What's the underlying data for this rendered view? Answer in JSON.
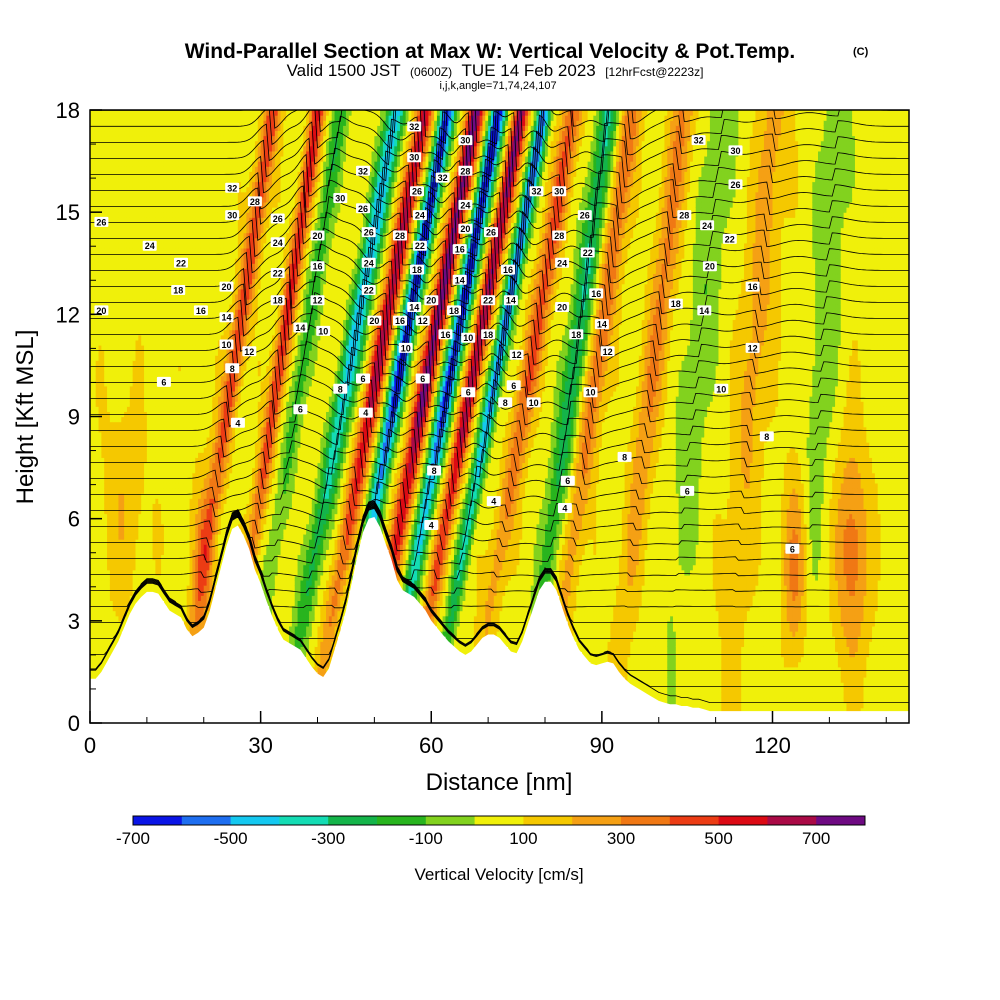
{
  "chart_data": {
    "type": "heatmap",
    "title": "Wind-Parallel Section at Max W: Vertical Velocity & Pot.Temp.",
    "title_mark": "(C)",
    "subtitle_prefix": "Valid 1500 JST",
    "subtitle_zulu": "(0600Z)",
    "subtitle_date": "TUE 14 Feb 2023",
    "subtitle_forecast": "[12hrFcst@2223z]",
    "grid_params": "i,j,k,angle=71,74,24,107",
    "xlabel": "Distance [nm]",
    "ylabel": "Height [Kft MSL]",
    "xlim": [
      0,
      144
    ],
    "ylim": [
      0,
      18
    ],
    "xticks": [
      0,
      30,
      60,
      90,
      120
    ],
    "yticks": [
      0,
      3,
      6,
      9,
      12,
      15,
      18
    ],
    "colorbar": {
      "title": "Vertical Velocity [cm/s]",
      "bounds": [
        -700,
        800
      ],
      "step": 100,
      "tick_values": [
        -700,
        -500,
        -300,
        -100,
        100,
        300,
        500,
        700
      ],
      "tick_labels": [
        "-700",
        "-500",
        "-300",
        "-100",
        "100",
        "300",
        "500",
        "700"
      ],
      "colors": [
        "#0a14e6",
        "#1e6ef0",
        "#14c8f0",
        "#14dcb4",
        "#14b44a",
        "#28b41e",
        "#82d21e",
        "#f0f00a",
        "#f5c800",
        "#f5a014",
        "#f07814",
        "#ec3c14",
        "#dc0a14",
        "#aa0a46",
        "#6e0a82"
      ]
    },
    "terrain": [
      [
        0,
        1.3
      ],
      [
        1,
        1.3
      ],
      [
        2,
        1.5
      ],
      [
        3,
        1.8
      ],
      [
        4,
        2.1
      ],
      [
        5,
        2.4
      ],
      [
        6,
        2.8
      ],
      [
        7,
        3.2
      ],
      [
        8,
        3.5
      ],
      [
        9,
        3.7
      ],
      [
        10,
        3.85
      ],
      [
        11,
        3.85
      ],
      [
        12,
        3.8
      ],
      [
        13,
        3.55
      ],
      [
        14,
        3.3
      ],
      [
        15,
        3.2
      ],
      [
        16,
        3.1
      ],
      [
        17,
        2.75
      ],
      [
        18,
        2.55
      ],
      [
        19,
        2.65
      ],
      [
        20,
        2.8
      ],
      [
        21,
        3.25
      ],
      [
        22,
        3.9
      ],
      [
        23,
        4.55
      ],
      [
        24,
        5.2
      ],
      [
        25,
        5.7
      ],
      [
        26,
        5.8
      ],
      [
        27,
        5.5
      ],
      [
        28,
        5.1
      ],
      [
        29,
        4.5
      ],
      [
        30,
        4.1
      ],
      [
        31,
        3.6
      ],
      [
        32,
        3.15
      ],
      [
        33,
        2.75
      ],
      [
        34,
        2.45
      ],
      [
        35,
        2.35
      ],
      [
        36,
        2.25
      ],
      [
        37,
        2.15
      ],
      [
        38,
        1.9
      ],
      [
        39,
        1.65
      ],
      [
        40,
        1.45
      ],
      [
        41,
        1.35
      ],
      [
        42,
        1.6
      ],
      [
        43,
        2.15
      ],
      [
        44,
        2.7
      ],
      [
        45,
        3.3
      ],
      [
        46,
        4.1
      ],
      [
        47,
        4.9
      ],
      [
        48,
        5.6
      ],
      [
        49,
        6.0
      ],
      [
        50,
        6.05
      ],
      [
        51,
        5.75
      ],
      [
        52,
        5.25
      ],
      [
        53,
        4.8
      ],
      [
        54,
        4.2
      ],
      [
        55,
        3.9
      ],
      [
        56,
        3.8
      ],
      [
        57,
        3.7
      ],
      [
        58,
        3.5
      ],
      [
        59,
        3.3
      ],
      [
        60,
        3.0
      ],
      [
        61,
        2.8
      ],
      [
        62,
        2.6
      ],
      [
        63,
        2.4
      ],
      [
        64,
        2.25
      ],
      [
        65,
        2.1
      ],
      [
        66,
        2.0
      ],
      [
        67,
        2.1
      ],
      [
        68,
        2.3
      ],
      [
        69,
        2.5
      ],
      [
        70,
        2.6
      ],
      [
        71,
        2.6
      ],
      [
        72,
        2.5
      ],
      [
        73,
        2.3
      ],
      [
        74,
        2.1
      ],
      [
        75,
        2.05
      ],
      [
        76,
        2.4
      ],
      [
        77,
        2.9
      ],
      [
        78,
        3.4
      ],
      [
        79,
        3.9
      ],
      [
        80,
        4.15
      ],
      [
        81,
        4.15
      ],
      [
        82,
        3.9
      ],
      [
        83,
        3.4
      ],
      [
        84,
        2.9
      ],
      [
        85,
        2.5
      ],
      [
        86,
        2.15
      ],
      [
        87,
        1.95
      ],
      [
        88,
        1.75
      ],
      [
        89,
        1.7
      ],
      [
        90,
        1.75
      ],
      [
        91,
        1.8
      ],
      [
        92,
        1.75
      ],
      [
        93,
        1.5
      ],
      [
        94,
        1.3
      ],
      [
        95,
        1.15
      ],
      [
        96,
        1.05
      ],
      [
        97,
        0.95
      ],
      [
        98,
        0.85
      ],
      [
        99,
        0.75
      ],
      [
        100,
        0.65
      ],
      [
        101,
        0.6
      ],
      [
        102,
        0.55
      ],
      [
        103,
        0.55
      ],
      [
        104,
        0.5
      ],
      [
        105,
        0.5
      ],
      [
        106,
        0.45
      ],
      [
        107,
        0.45
      ],
      [
        108,
        0.4
      ],
      [
        109,
        0.35
      ],
      [
        110,
        0.35
      ],
      [
        111,
        0.35
      ],
      [
        112,
        0.35
      ],
      [
        113,
        0.35
      ],
      [
        114,
        0.35
      ],
      [
        115,
        0.35
      ],
      [
        116,
        0.35
      ],
      [
        117,
        0.35
      ],
      [
        118,
        0.35
      ],
      [
        119,
        0.35
      ],
      [
        120,
        0.35
      ],
      [
        121,
        0.35
      ],
      [
        122,
        0.35
      ],
      [
        123,
        0.35
      ],
      [
        124,
        0.35
      ],
      [
        125,
        0.35
      ],
      [
        126,
        0.35
      ],
      [
        127,
        0.35
      ],
      [
        128,
        0.35
      ],
      [
        129,
        0.35
      ],
      [
        130,
        0.35
      ],
      [
        131,
        0.35
      ],
      [
        132,
        0.35
      ],
      [
        133,
        0.35
      ],
      [
        134,
        0.35
      ],
      [
        135,
        0.35
      ],
      [
        136,
        0.35
      ],
      [
        137,
        0.35
      ],
      [
        138,
        0.35
      ],
      [
        139,
        0.35
      ],
      [
        140,
        0.35
      ],
      [
        141,
        0.35
      ],
      [
        142,
        0.35
      ],
      [
        143,
        0.35
      ],
      [
        144,
        0.35
      ]
    ],
    "wave_bands": [
      {
        "x0": 24,
        "tilt": 0.9,
        "width": 1.5,
        "w": 420
      },
      {
        "x0": 32,
        "tilt": 0.9,
        "width": 1.3,
        "w": 480
      },
      {
        "x0": 36,
        "tilt": 0.9,
        "width": 1.5,
        "w": -240
      },
      {
        "x0": 44,
        "tilt": 1.1,
        "width": 1.7,
        "w": -520
      },
      {
        "x0": 49,
        "tilt": 1.1,
        "width": 1.5,
        "w": 580
      },
      {
        "x0": 53,
        "tilt": 1.1,
        "width": 1.4,
        "w": -720
      },
      {
        "x0": 58,
        "tilt": 1.1,
        "width": 1.5,
        "w": 700
      },
      {
        "x0": 62,
        "tilt": 1.1,
        "width": 1.4,
        "w": -720
      },
      {
        "x0": 66,
        "tilt": 1.1,
        "width": 1.3,
        "w": 650
      },
      {
        "x0": 70,
        "tilt": 1.1,
        "width": 1.2,
        "w": -620
      },
      {
        "x0": 76,
        "tilt": 1.0,
        "width": 1.8,
        "w": 360
      },
      {
        "x0": 84,
        "tilt": 0.8,
        "width": 1.8,
        "w": -380
      },
      {
        "x0": 88,
        "tilt": 0.8,
        "width": 1.8,
        "w": 330
      },
      {
        "x0": 98,
        "tilt": 0.7,
        "width": 2.2,
        "w": 250
      },
      {
        "x0": 106,
        "tilt": 0.6,
        "width": 2.4,
        "w": -160
      },
      {
        "x0": 116,
        "tilt": 0.5,
        "width": 2.6,
        "w": 190
      },
      {
        "x0": 128,
        "tilt": 0.4,
        "width": 2.6,
        "w": -130
      }
    ],
    "lower_cells": [
      {
        "x": 124,
        "z": 4.5,
        "rx": 2.2,
        "rz": 2.8,
        "w": 280
      },
      {
        "x": 134,
        "z": 5.0,
        "rx": 2.8,
        "rz": 3.2,
        "w": 310
      },
      {
        "x": 6,
        "z": 6.5,
        "rx": 4,
        "rz": 3,
        "w": 120
      },
      {
        "x": 20,
        "z": 5.0,
        "rx": 2,
        "rz": 2.5,
        "w": 180
      }
    ],
    "contour_labels": [
      {
        "x": 2.0,
        "z": 14.7,
        "text": "26"
      },
      {
        "x": 10.5,
        "z": 14.0,
        "text": "24"
      },
      {
        "x": 16.0,
        "z": 13.5,
        "text": "22"
      },
      {
        "x": 15.5,
        "z": 12.7,
        "text": "18"
      },
      {
        "x": 19.5,
        "z": 12.1,
        "text": "16"
      },
      {
        "x": 24.0,
        "z": 12.8,
        "text": "20"
      },
      {
        "x": 24.0,
        "z": 11.9,
        "text": "14"
      },
      {
        "x": 24.0,
        "z": 11.1,
        "text": "10"
      },
      {
        "x": 25.0,
        "z": 10.4,
        "text": "8"
      },
      {
        "x": 28.0,
        "z": 10.9,
        "text": "12"
      },
      {
        "x": 25.0,
        "z": 15.7,
        "text": "32"
      },
      {
        "x": 25.0,
        "z": 14.9,
        "text": "30"
      },
      {
        "x": 29.0,
        "z": 15.3,
        "text": "28"
      },
      {
        "x": 33.0,
        "z": 14.8,
        "text": "26"
      },
      {
        "x": 33.0,
        "z": 14.1,
        "text": "24"
      },
      {
        "x": 33.0,
        "z": 13.2,
        "text": "22"
      },
      {
        "x": 33.0,
        "z": 12.4,
        "text": "18"
      },
      {
        "x": 37.0,
        "z": 11.6,
        "text": "14"
      },
      {
        "x": 40.0,
        "z": 14.3,
        "text": "20"
      },
      {
        "x": 40.0,
        "z": 13.4,
        "text": "16"
      },
      {
        "x": 40.0,
        "z": 12.4,
        "text": "12"
      },
      {
        "x": 41.0,
        "z": 11.5,
        "text": "10"
      },
      {
        "x": 26.0,
        "z": 8.8,
        "text": "4"
      },
      {
        "x": 37.0,
        "z": 9.2,
        "text": "6"
      },
      {
        "x": 44.0,
        "z": 9.8,
        "text": "8"
      },
      {
        "x": 44.0,
        "z": 15.4,
        "text": "30"
      },
      {
        "x": 48.0,
        "z": 16.2,
        "text": "32"
      },
      {
        "x": 48.0,
        "z": 15.1,
        "text": "26"
      },
      {
        "x": 49.0,
        "z": 14.4,
        "text": "26"
      },
      {
        "x": 49.0,
        "z": 13.5,
        "text": "24"
      },
      {
        "x": 49.0,
        "z": 12.7,
        "text": "22"
      },
      {
        "x": 50.0,
        "z": 11.8,
        "text": "20"
      },
      {
        "x": 48.0,
        "z": 10.1,
        "text": "6"
      },
      {
        "x": 48.5,
        "z": 9.1,
        "text": "4"
      },
      {
        "x": 54.5,
        "z": 14.3,
        "text": "28"
      },
      {
        "x": 54.5,
        "z": 11.8,
        "text": "16"
      },
      {
        "x": 55.5,
        "z": 11.0,
        "text": "10"
      },
      {
        "x": 57.0,
        "z": 12.2,
        "text": "14"
      },
      {
        "x": 57.0,
        "z": 17.5,
        "text": "32"
      },
      {
        "x": 57.0,
        "z": 16.6,
        "text": "30"
      },
      {
        "x": 57.5,
        "z": 15.6,
        "text": "26"
      },
      {
        "x": 58.0,
        "z": 14.9,
        "text": "24"
      },
      {
        "x": 58.0,
        "z": 14.0,
        "text": "22"
      },
      {
        "x": 57.5,
        "z": 13.3,
        "text": "18"
      },
      {
        "x": 58.5,
        "z": 11.8,
        "text": "12"
      },
      {
        "x": 58.5,
        "z": 10.1,
        "text": "6"
      },
      {
        "x": 60.0,
        "z": 12.4,
        "text": "20"
      },
      {
        "x": 60.5,
        "z": 7.4,
        "text": "8"
      },
      {
        "x": 60.0,
        "z": 5.8,
        "text": "4"
      },
      {
        "x": 62.0,
        "z": 16.0,
        "text": "32"
      },
      {
        "x": 62.5,
        "z": 11.4,
        "text": "16"
      },
      {
        "x": 64.0,
        "z": 12.1,
        "text": "18"
      },
      {
        "x": 65.0,
        "z": 13.9,
        "text": "16"
      },
      {
        "x": 65.0,
        "z": 13.0,
        "text": "14"
      },
      {
        "x": 66.0,
        "z": 17.1,
        "text": "30"
      },
      {
        "x": 66.0,
        "z": 16.2,
        "text": "28"
      },
      {
        "x": 66.0,
        "z": 15.2,
        "text": "24"
      },
      {
        "x": 66.0,
        "z": 14.5,
        "text": "20"
      },
      {
        "x": 66.5,
        "z": 11.3,
        "text": "10"
      },
      {
        "x": 66.5,
        "z": 9.7,
        "text": "6"
      },
      {
        "x": 70.5,
        "z": 14.4,
        "text": "26"
      },
      {
        "x": 70.0,
        "z": 12.4,
        "text": "22"
      },
      {
        "x": 70.0,
        "z": 11.4,
        "text": "18"
      },
      {
        "x": 71.0,
        "z": 6.5,
        "text": "4"
      },
      {
        "x": 73.0,
        "z": 9.4,
        "text": "8"
      },
      {
        "x": 73.5,
        "z": 13.3,
        "text": "16"
      },
      {
        "x": 74.0,
        "z": 12.4,
        "text": "14"
      },
      {
        "x": 75.0,
        "z": 10.8,
        "text": "12"
      },
      {
        "x": 74.5,
        "z": 9.9,
        "text": "6"
      },
      {
        "x": 78.0,
        "z": 9.4,
        "text": "10"
      },
      {
        "x": 78.5,
        "z": 15.6,
        "text": "32"
      },
      {
        "x": 82.5,
        "z": 15.6,
        "text": "30"
      },
      {
        "x": 82.5,
        "z": 14.3,
        "text": "28"
      },
      {
        "x": 83.0,
        "z": 13.5,
        "text": "24"
      },
      {
        "x": 83.0,
        "z": 12.2,
        "text": "20"
      },
      {
        "x": 85.5,
        "z": 11.4,
        "text": "18"
      },
      {
        "x": 87.0,
        "z": 14.9,
        "text": "26"
      },
      {
        "x": 87.5,
        "z": 13.8,
        "text": "22"
      },
      {
        "x": 89.0,
        "z": 12.6,
        "text": "16"
      },
      {
        "x": 90.0,
        "z": 11.7,
        "text": "14"
      },
      {
        "x": 91.0,
        "z": 10.9,
        "text": "12"
      },
      {
        "x": 88.0,
        "z": 9.7,
        "text": "10"
      },
      {
        "x": 94.0,
        "z": 7.8,
        "text": "8"
      },
      {
        "x": 84.0,
        "z": 7.1,
        "text": "6"
      },
      {
        "x": 83.5,
        "z": 6.3,
        "text": "4"
      },
      {
        "x": 105.0,
        "z": 6.8,
        "text": "6"
      },
      {
        "x": 103.0,
        "z": 12.3,
        "text": "18"
      },
      {
        "x": 108.0,
        "z": 12.1,
        "text": "14"
      },
      {
        "x": 104.5,
        "z": 14.9,
        "text": "28"
      },
      {
        "x": 108.5,
        "z": 14.6,
        "text": "24"
      },
      {
        "x": 109.0,
        "z": 13.4,
        "text": "20"
      },
      {
        "x": 111.0,
        "z": 9.8,
        "text": "10"
      },
      {
        "x": 107.0,
        "z": 17.1,
        "text": "32"
      },
      {
        "x": 113.5,
        "z": 16.8,
        "text": "30"
      },
      {
        "x": 113.5,
        "z": 15.8,
        "text": "26"
      },
      {
        "x": 112.5,
        "z": 14.2,
        "text": "22"
      },
      {
        "x": 116.5,
        "z": 12.8,
        "text": "16"
      },
      {
        "x": 116.5,
        "z": 11.0,
        "text": "12"
      },
      {
        "x": 119.0,
        "z": 8.4,
        "text": "8"
      },
      {
        "x": 123.5,
        "z": 5.1,
        "text": "6"
      },
      {
        "x": 2.0,
        "z": 12.1,
        "text": "20"
      },
      {
        "x": 13.0,
        "z": 10.0,
        "text": "6"
      }
    ]
  }
}
